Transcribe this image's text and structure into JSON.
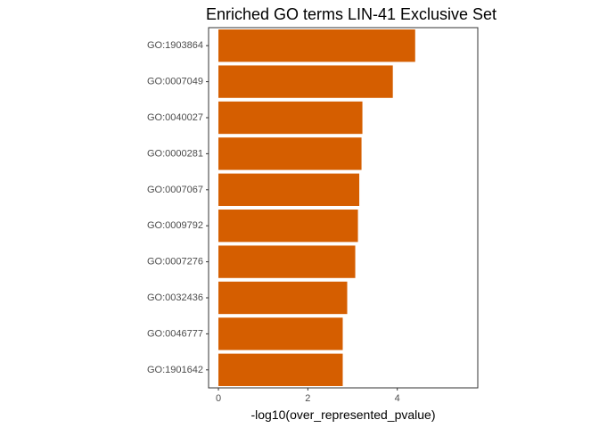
{
  "chart_data": {
    "type": "bar",
    "orientation": "horizontal",
    "title": "Enriched GO terms LIN-41 Exclusive Set",
    "xlabel": "-log10(over_represented_pvalue)",
    "ylabel": "",
    "categories": [
      "GO:1903864",
      "GO:0007049",
      "GO:0040027",
      "GO:0000281",
      "GO:0007067",
      "GO:0009792",
      "GO:0007276",
      "GO:0032436",
      "GO:0046777",
      "GO:1901642"
    ],
    "values": [
      4.4,
      3.9,
      3.22,
      3.2,
      3.15,
      3.12,
      3.06,
      2.88,
      2.78,
      2.78
    ],
    "xlim": [
      -0.22,
      5.8
    ],
    "xticks": [
      0,
      2,
      4
    ],
    "bar_color": "#D55E00",
    "grid": false,
    "legend": "none"
  }
}
